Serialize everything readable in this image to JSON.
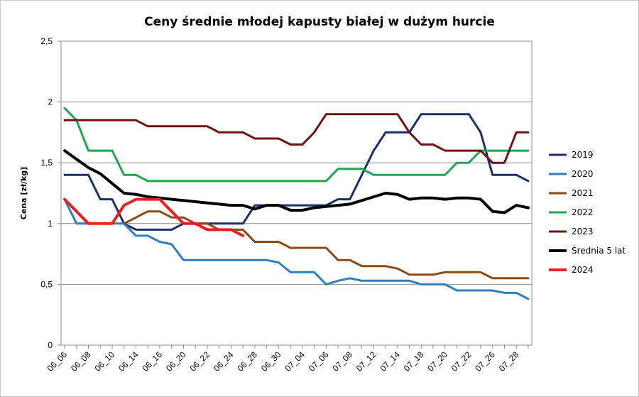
{
  "chart_data": {
    "type": "line",
    "title": "Ceny średnie młodej kapusty białej w dużym hurcie",
    "xlabel": "",
    "ylabel": "Cena [zł/kg]",
    "ylim": [
      0,
      2.5
    ],
    "y_ticks": [
      0,
      0.5,
      1,
      1.5,
      2,
      2.5
    ],
    "y_tick_labels": [
      "0",
      "0,5",
      "1",
      "1,5",
      "2",
      "2,5"
    ],
    "grid": "horizontal",
    "legend_position": "right",
    "x_labels_shown": [
      "06_06",
      "06_08",
      "06_10",
      "06_14",
      "06_16",
      "06_20",
      "06_22",
      "06_24",
      "06_28",
      "06_30",
      "07_04",
      "07_06",
      "07_08",
      "07_12",
      "07_14",
      "07_18",
      "07_20",
      "07_22",
      "07_26",
      "07_28"
    ],
    "categories": [
      "06_06",
      "06_07",
      "06_08",
      "06_09",
      "06_10",
      "06_13",
      "06_14",
      "06_15",
      "06_16",
      "06_17",
      "06_20",
      "06_21",
      "06_22",
      "06_23",
      "06_24",
      "06_27",
      "06_28",
      "06_29",
      "06_30",
      "07_01",
      "07_04",
      "07_05",
      "07_06",
      "07_07",
      "07_08",
      "07_11",
      "07_12",
      "07_13",
      "07_14",
      "07_15",
      "07_18",
      "07_19",
      "07_20",
      "07_21",
      "07_22",
      "07_25",
      "07_26",
      "07_27",
      "07_28",
      "07_29"
    ],
    "series": [
      {
        "name": "2019",
        "color": "#1a2f6b",
        "width": 3,
        "values": [
          1.4,
          1.4,
          1.4,
          1.2,
          1.2,
          1.0,
          0.95,
          0.95,
          0.95,
          0.95,
          1.0,
          1.0,
          1.0,
          1.0,
          1.0,
          1.0,
          1.15,
          1.15,
          1.15,
          1.15,
          1.15,
          1.15,
          1.15,
          1.2,
          1.2,
          1.4,
          1.6,
          1.75,
          1.75,
          1.75,
          1.9,
          1.9,
          1.9,
          1.9,
          1.9,
          1.75,
          1.4,
          1.4,
          1.4,
          1.35
        ]
      },
      {
        "name": "2020",
        "color": "#2e7fc2",
        "width": 3,
        "values": [
          1.2,
          1.0,
          1.0,
          1.0,
          1.0,
          1.0,
          0.9,
          0.9,
          0.85,
          0.83,
          0.7,
          0.7,
          0.7,
          0.7,
          0.7,
          0.7,
          0.7,
          0.7,
          0.68,
          0.6,
          0.6,
          0.6,
          0.5,
          0.53,
          0.55,
          0.53,
          0.53,
          0.53,
          0.53,
          0.53,
          0.5,
          0.5,
          0.5,
          0.45,
          0.45,
          0.45,
          0.45,
          0.43,
          0.43,
          0.38
        ]
      },
      {
        "name": "2021",
        "color": "#8a4a12",
        "width": 3,
        "values": [
          null,
          null,
          null,
          null,
          null,
          1.0,
          1.05,
          1.1,
          1.1,
          1.05,
          1.05,
          1.0,
          1.0,
          0.95,
          0.95,
          0.95,
          0.85,
          0.85,
          0.85,
          0.8,
          0.8,
          0.8,
          0.8,
          0.7,
          0.7,
          0.65,
          0.65,
          0.65,
          0.63,
          0.58,
          0.58,
          0.58,
          0.6,
          0.6,
          0.6,
          0.6,
          0.55,
          0.55,
          0.55,
          0.55
        ]
      },
      {
        "name": "2022",
        "color": "#1ea650",
        "width": 3,
        "values": [
          1.95,
          1.85,
          1.6,
          1.6,
          1.6,
          1.4,
          1.4,
          1.35,
          1.35,
          1.35,
          1.35,
          1.35,
          1.35,
          1.35,
          1.35,
          1.35,
          1.35,
          1.35,
          1.35,
          1.35,
          1.35,
          1.35,
          1.35,
          1.45,
          1.45,
          1.45,
          1.4,
          1.4,
          1.4,
          1.4,
          1.4,
          1.4,
          1.4,
          1.5,
          1.5,
          1.6,
          1.6,
          1.6,
          1.6,
          1.6
        ]
      },
      {
        "name": "2023",
        "color": "#6e1414",
        "width": 3,
        "values": [
          1.85,
          1.85,
          1.85,
          1.85,
          1.85,
          1.85,
          1.85,
          1.8,
          1.8,
          1.8,
          1.8,
          1.8,
          1.8,
          1.75,
          1.75,
          1.75,
          1.7,
          1.7,
          1.7,
          1.65,
          1.65,
          1.75,
          1.9,
          1.9,
          1.9,
          1.9,
          1.9,
          1.9,
          1.9,
          1.75,
          1.65,
          1.65,
          1.6,
          1.6,
          1.6,
          1.6,
          1.5,
          1.5,
          1.75,
          1.75
        ]
      },
      {
        "name": "Średnia 5 lat",
        "color": "#000000",
        "width": 4,
        "values": [
          1.6,
          1.53,
          1.46,
          1.41,
          1.33,
          1.25,
          1.24,
          1.22,
          1.21,
          1.2,
          1.19,
          1.18,
          1.17,
          1.16,
          1.15,
          1.15,
          1.12,
          1.15,
          1.15,
          1.11,
          1.11,
          1.13,
          1.14,
          1.15,
          1.16,
          1.19,
          1.22,
          1.25,
          1.24,
          1.2,
          1.21,
          1.21,
          1.2,
          1.21,
          1.21,
          1.2,
          1.1,
          1.09,
          1.15,
          1.13
        ]
      },
      {
        "name": "2024",
        "color": "#e8211f",
        "width": 4,
        "values": [
          1.2,
          1.1,
          1.0,
          1.0,
          1.0,
          1.15,
          1.2,
          1.2,
          1.2,
          1.1,
          1.0,
          1.0,
          0.95,
          0.95,
          0.95,
          0.9,
          null,
          null,
          null,
          null,
          null,
          null,
          null,
          null,
          null,
          null,
          null,
          null,
          null,
          null,
          null,
          null,
          null,
          null,
          null,
          null,
          null,
          null,
          null,
          null
        ]
      }
    ]
  }
}
